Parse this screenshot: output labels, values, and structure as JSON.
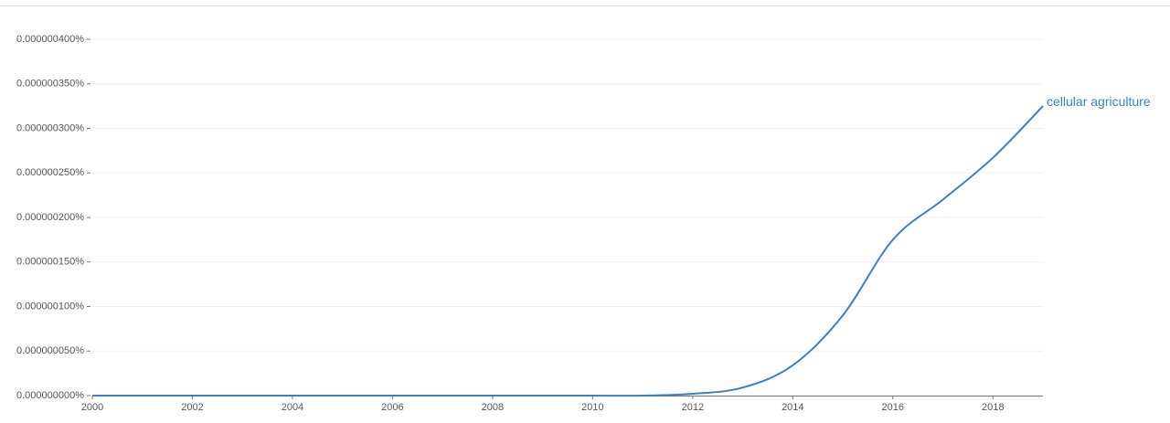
{
  "chart_data": {
    "type": "line",
    "x": [
      2000,
      2001,
      2002,
      2003,
      2004,
      2005,
      2006,
      2007,
      2008,
      2009,
      2010,
      2011,
      2012,
      2013,
      2014,
      2015,
      2016,
      2017,
      2018,
      2019
    ],
    "series": [
      {
        "name": "cellular agriculture",
        "color": "#3b7fc9",
        "values": [
          0,
          0,
          0,
          0,
          0,
          0,
          0,
          0,
          0,
          0,
          0,
          0,
          2e-09,
          9e-09,
          3.4e-08,
          9e-08,
          1.75e-07,
          2.2e-07,
          2.67e-07,
          3.25e-07
        ]
      }
    ],
    "xlim": [
      2000,
      2019
    ],
    "xticks": [
      2000,
      2002,
      2004,
      2006,
      2008,
      2010,
      2012,
      2014,
      2016,
      2018
    ],
    "ylim": [
      0,
      4e-07
    ],
    "yticks": [
      {
        "value": 0,
        "label": "0.000000000%"
      },
      {
        "value": 5e-08,
        "label": "0.000000050%"
      },
      {
        "value": 1e-07,
        "label": "0.000000100%"
      },
      {
        "value": 1.5e-07,
        "label": "0.000000150%"
      },
      {
        "value": 2e-07,
        "label": "0.000000200%"
      },
      {
        "value": 2.5e-07,
        "label": "0.000000250%"
      },
      {
        "value": 3e-07,
        "label": "0.000000300%"
      },
      {
        "value": 3.5e-07,
        "label": "0.000000350%"
      },
      {
        "value": 4e-07,
        "label": "0.000000400%"
      }
    ],
    "grid": true
  }
}
